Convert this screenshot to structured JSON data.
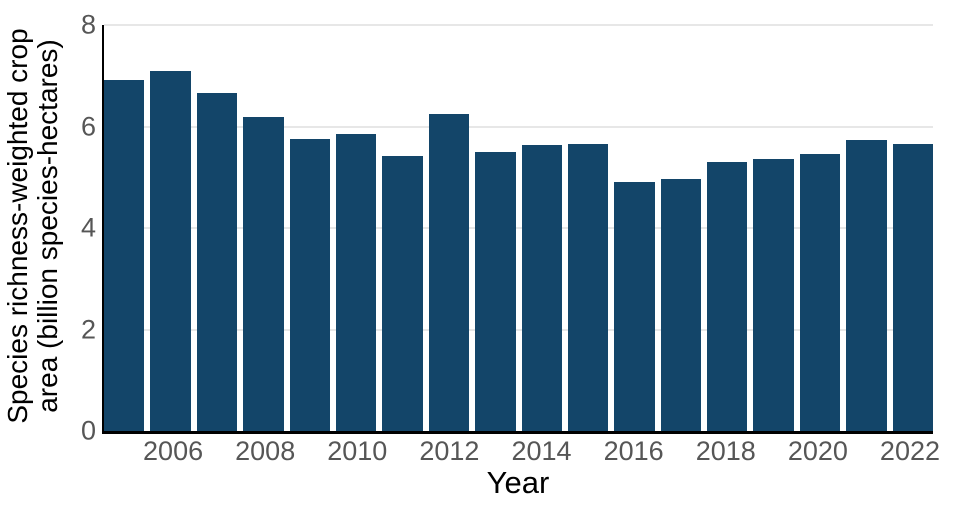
{
  "chart_data": {
    "type": "bar",
    "title": "",
    "xlabel": "Year",
    "ylabel": "Species richness-weighted crop area (billion species-hectares)",
    "ylabel_lines": [
      "Species richness-weighted crop",
      "area (billion species-hectares)"
    ],
    "categories": [
      2005,
      2006,
      2007,
      2008,
      2009,
      2010,
      2011,
      2012,
      2013,
      2014,
      2015,
      2016,
      2017,
      2018,
      2019,
      2020,
      2021,
      2022
    ],
    "values": [
      6.92,
      7.09,
      6.67,
      6.19,
      5.76,
      5.85,
      5.42,
      6.24,
      5.5,
      5.63,
      5.65,
      4.91,
      4.96,
      5.31,
      5.36,
      5.45,
      5.74,
      5.66
    ],
    "ylim": [
      0,
      8
    ],
    "yticks": [
      0,
      2,
      4,
      6,
      8
    ],
    "xtick_labels": [
      2006,
      2008,
      2010,
      2012,
      2014,
      2016,
      2018,
      2020,
      2022
    ],
    "grid": true,
    "legend": "none",
    "bar_color": "#134569",
    "gridline_color": "#e7e7e7",
    "axis_spine_color": "#000000",
    "tick_label_color": "#565656"
  }
}
